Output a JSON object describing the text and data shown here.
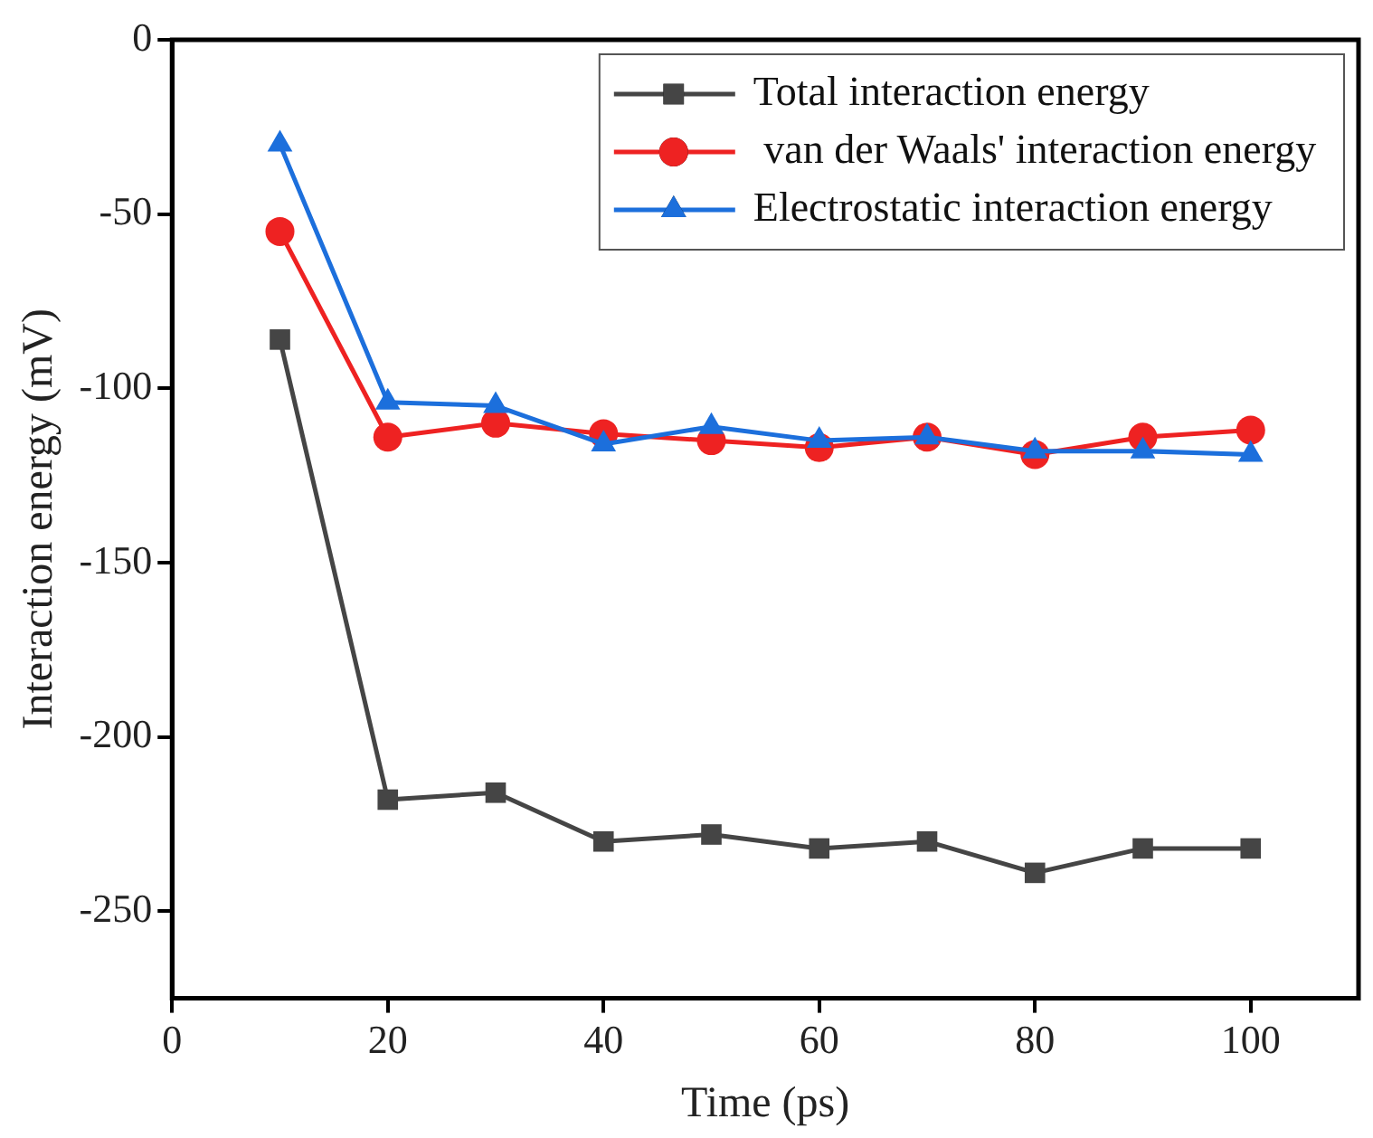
{
  "chart_data": {
    "type": "line",
    "xlabel": "Time (ps)",
    "ylabel": "Interaction energy (mV)",
    "x": [
      10,
      20,
      30,
      40,
      50,
      60,
      70,
      80,
      90,
      100
    ],
    "series": [
      {
        "name": "Total interaction energy",
        "color": "#454545",
        "marker": "square",
        "values": [
          -86,
          -218,
          -216,
          -230,
          -228,
          -232,
          -230,
          -239,
          -232,
          -232
        ]
      },
      {
        "name": " van der Waals' interaction energy",
        "color": "#ee2222",
        "marker": "circle",
        "values": [
          -55,
          -114,
          -110,
          -113,
          -115,
          -117,
          -114,
          -119,
          -114,
          -112
        ]
      },
      {
        "name": "Electrostatic interaction energy",
        "color": "#1c6fdc",
        "marker": "triangle",
        "values": [
          -30,
          -104,
          -105,
          -116,
          -111,
          -115,
          -114,
          -118,
          -118,
          -119
        ]
      }
    ],
    "xlim": [
      0,
      110
    ],
    "xticks": [
      0,
      20,
      40,
      60,
      80,
      100
    ],
    "ylim": [
      -275,
      0
    ],
    "yticks": [
      -250,
      -200,
      -150,
      -100,
      -50,
      0
    ],
    "grid": false,
    "legend": "top right",
    "line_style": "solid"
  }
}
